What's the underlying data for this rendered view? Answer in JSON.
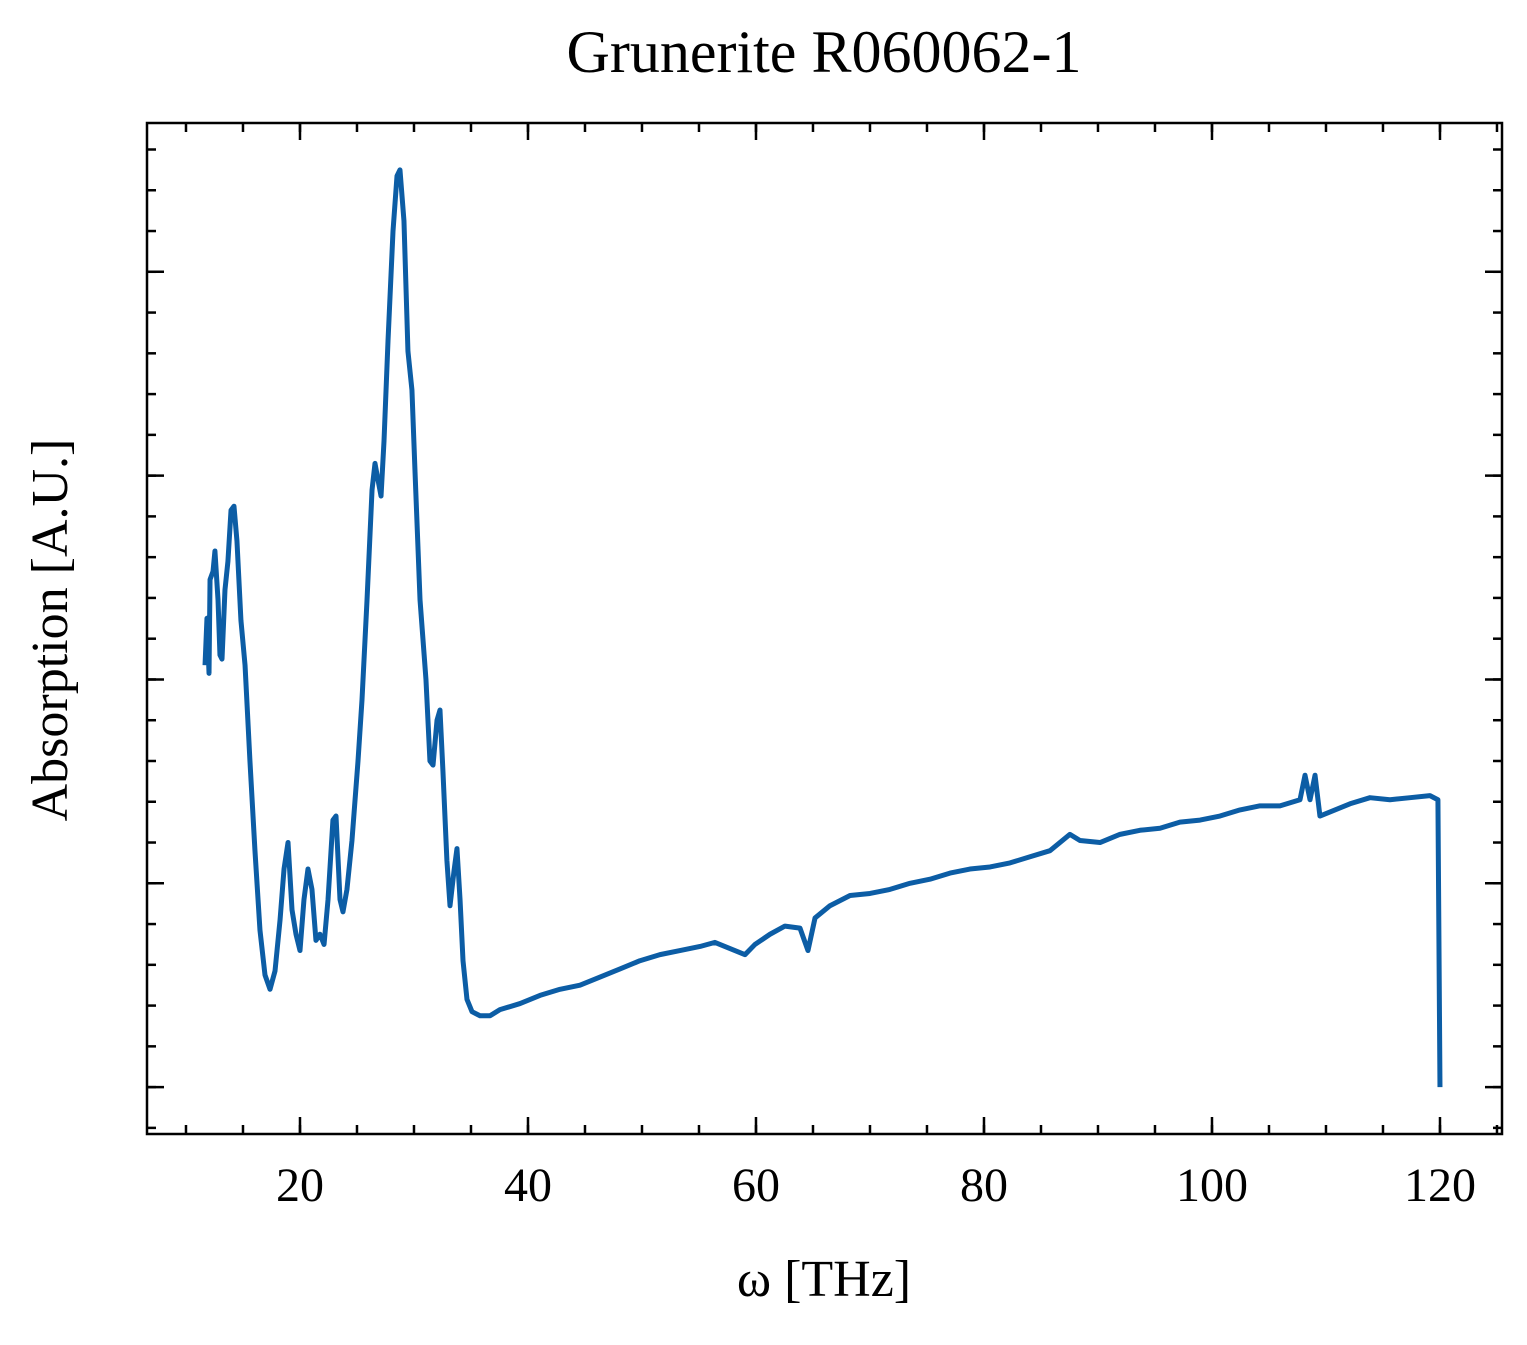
{
  "chart_data": {
    "type": "line",
    "title": "Grunerite R060062-1",
    "x_label": "ω [THz]",
    "y_label": "Absorption [A.U.]",
    "xlim": [
      6.58,
      125.44
    ],
    "ylim": [
      -0.23,
      4.73
    ],
    "xticks": [
      20,
      40,
      60,
      80,
      100,
      120
    ],
    "yticks": [
      0,
      1,
      2,
      3,
      4
    ],
    "xminor_step": 5,
    "yminor_step": 0.2,
    "show_ytick_labels": false,
    "series": [
      {
        "color": "#0C5DA5",
        "x": [
          11.67,
          11.84,
          12.02,
          12.11,
          12.37,
          12.54,
          12.81,
          12.98,
          13.16,
          13.42,
          13.68,
          13.95,
          14.21,
          14.47,
          14.82,
          15.18,
          15.61,
          16.05,
          16.49,
          16.93,
          17.37,
          17.81,
          18.25,
          18.6,
          18.95,
          19.3,
          19.65,
          20,
          20.35,
          20.7,
          21.05,
          21.4,
          21.75,
          22.11,
          22.46,
          22.89,
          23.16,
          23.51,
          23.77,
          24.12,
          24.56,
          25.09,
          25.44,
          25.88,
          26.32,
          26.58,
          26.84,
          27.11,
          27.37,
          27.72,
          28.16,
          28.51,
          28.77,
          29.12,
          29.47,
          29.82,
          30.09,
          30.53,
          31.05,
          31.4,
          31.67,
          32.02,
          32.28,
          32.54,
          32.89,
          33.16,
          33.51,
          33.77,
          34.04,
          34.3,
          34.65,
          35.09,
          35.79,
          36.67,
          37.54,
          39.3,
          41.05,
          42.81,
          44.56,
          46.32,
          48.07,
          49.82,
          51.58,
          53.33,
          55.09,
          56.4,
          57.72,
          59.04,
          59.91,
          61.23,
          62.54,
          63.86,
          64.56,
          65.18,
          66.49,
          68.25,
          70,
          71.75,
          73.51,
          75.26,
          77.02,
          78.77,
          80.53,
          82.28,
          84.04,
          85.79,
          87.54,
          88.42,
          90.18,
          91.93,
          93.68,
          95.44,
          97.19,
          98.95,
          100.7,
          102.46,
          104.21,
          105.96,
          107.72,
          108.16,
          108.6,
          109.04,
          109.47,
          110.79,
          112.11,
          113.86,
          115.61,
          117.37,
          119.12,
          119.82,
          120
        ],
        "values": [
          2.07,
          2.3,
          2.03,
          2.49,
          2.53,
          2.63,
          2.39,
          2.12,
          2.1,
          2.44,
          2.58,
          2.83,
          2.85,
          2.68,
          2.29,
          2.07,
          1.6,
          1.16,
          0.77,
          0.55,
          0.48,
          0.57,
          0.82,
          1.07,
          1.2,
          0.87,
          0.75,
          0.67,
          0.92,
          1.07,
          0.97,
          0.72,
          0.75,
          0.7,
          0.92,
          1.31,
          1.33,
          0.92,
          0.86,
          0.97,
          1.21,
          1.6,
          1.9,
          2.39,
          2.93,
          3.06,
          2.98,
          2.9,
          3.17,
          3.66,
          4.2,
          4.47,
          4.5,
          4.25,
          3.61,
          3.42,
          3.02,
          2.39,
          2,
          1.6,
          1.58,
          1.8,
          1.85,
          1.55,
          1.11,
          0.89,
          1.06,
          1.17,
          0.92,
          0.62,
          0.43,
          0.37,
          0.35,
          0.35,
          0.38,
          0.41,
          0.45,
          0.48,
          0.5,
          0.54,
          0.58,
          0.62,
          0.65,
          0.67,
          0.69,
          0.71,
          0.68,
          0.65,
          0.7,
          0.75,
          0.79,
          0.78,
          0.67,
          0.83,
          0.89,
          0.94,
          0.95,
          0.97,
          1,
          1.02,
          1.05,
          1.07,
          1.08,
          1.1,
          1.13,
          1.16,
          1.24,
          1.21,
          1.2,
          1.24,
          1.26,
          1.27,
          1.3,
          1.31,
          1.33,
          1.36,
          1.38,
          1.38,
          1.41,
          1.53,
          1.41,
          1.53,
          1.33,
          1.36,
          1.39,
          1.42,
          1.41,
          1.42,
          1.43,
          1.41,
          0
        ]
      }
    ]
  }
}
